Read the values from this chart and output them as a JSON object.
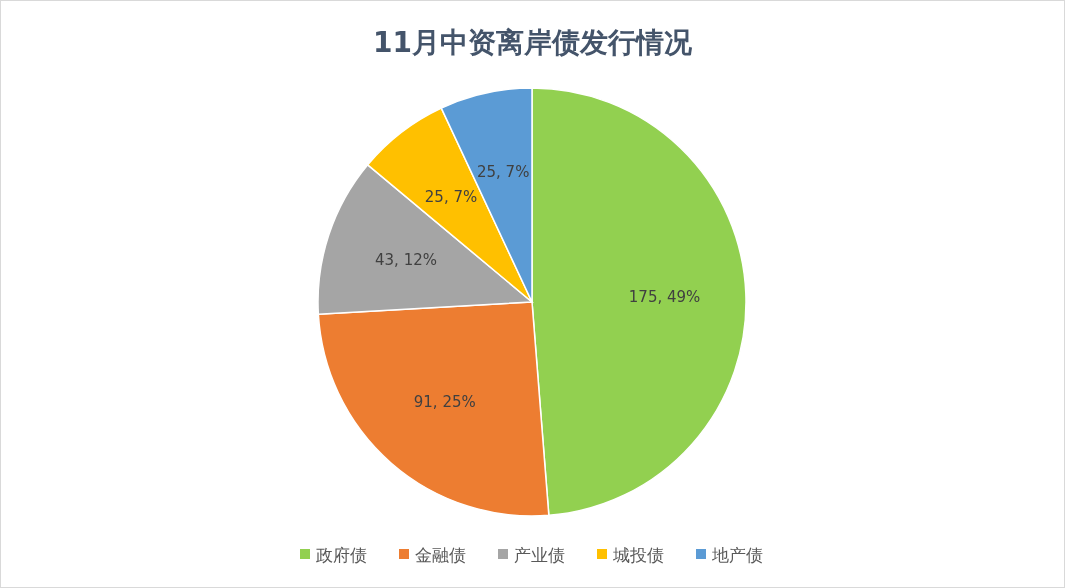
{
  "chart_data": {
    "type": "pie",
    "title": "11月中资离岸债发行情况",
    "categories": [
      "政府债",
      "金融债",
      "产业债",
      "城投债",
      "地产债"
    ],
    "values": [
      175,
      91,
      43,
      25,
      25
    ],
    "colors": [
      "#92d050",
      "#ed7d31",
      "#a5a5a5",
      "#ffc000",
      "#5b9bd5"
    ],
    "value_labels": [
      "175, 49%",
      "91, 25%",
      "43, 12%",
      "25, 7%",
      "25, 7%"
    ],
    "legend": "bottom"
  }
}
